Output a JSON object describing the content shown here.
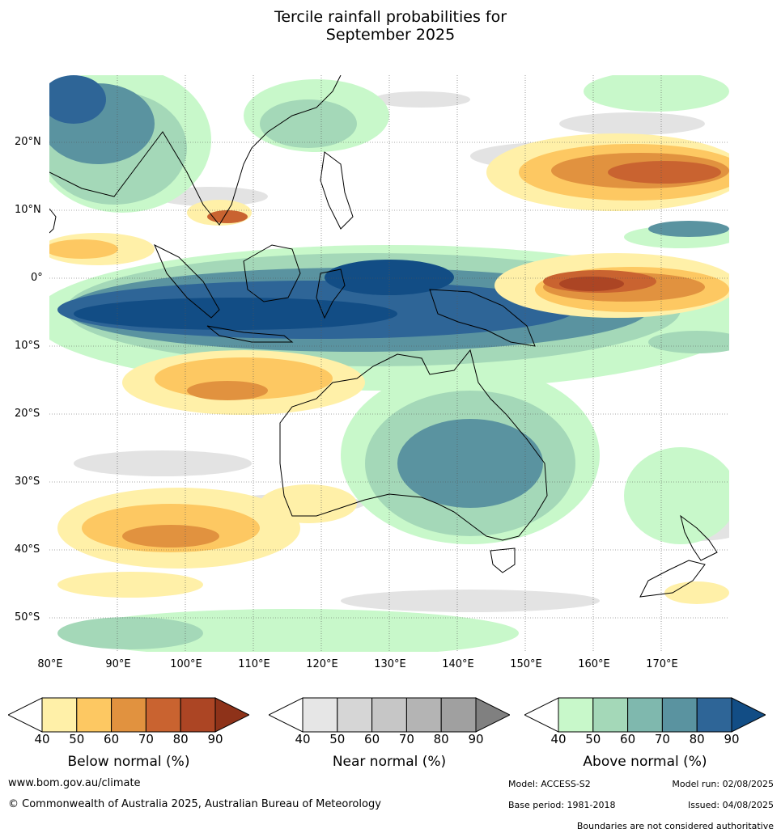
{
  "title_line1": "Tercile rainfall probabilities for",
  "title_line2": "September 2025",
  "lat_labels": [
    "20°N",
    "10°N",
    "0°",
    "10°S",
    "20°S",
    "30°S",
    "40°S",
    "50°S"
  ],
  "lon_labels": [
    "80°E",
    "90°E",
    "100°E",
    "110°E",
    "120°E",
    "130°E",
    "140°E",
    "150°E",
    "160°E",
    "170°E"
  ],
  "colorbars": [
    {
      "label": "Below normal (%)",
      "colors": [
        "#fff0a8",
        "#fdc862",
        "#e1923f",
        "#c96330",
        "#ac4524",
        "#8e3219"
      ],
      "ticks": [
        "40",
        "50",
        "60",
        "70",
        "80",
        "90"
      ]
    },
    {
      "label": "Near normal (%)",
      "colors": [
        "#e6e6e6",
        "#d6d6d6",
        "#c6c6c6",
        "#b4b4b4",
        "#a0a0a0",
        "#808080"
      ],
      "ticks": [
        "40",
        "50",
        "60",
        "70",
        "80",
        "90"
      ]
    },
    {
      "label": "Above normal (%)",
      "colors": [
        "#c8f8ca",
        "#a4d8b8",
        "#7fb8ae",
        "#5a93a0",
        "#2e6597",
        "#124d85"
      ],
      "ticks": [
        "40",
        "50",
        "60",
        "70",
        "80",
        "90"
      ]
    }
  ],
  "footer": {
    "website": "www.bom.gov.au/climate",
    "copyright": "© Commonwealth of Australia 2025, Australian Bureau of Meteorology",
    "model": "Model: ACCESS-S2",
    "model_run": "Model run: 02/08/2025",
    "base_period": "Base period: 1981-2018",
    "issued": "Issued: 04/08/2025",
    "disclaimer": "Boundaries are not considered authoritative"
  },
  "map_colors": {
    "below_normal_low": "#fff0a8",
    "below_normal_mid": "#fdc862",
    "below_normal_high": "#c96330",
    "below_normal_max": "#ac4524",
    "near_normal": "#e3e3e3",
    "above_normal_low": "#c8f8ca",
    "above_normal_mid": "#a4d8b8",
    "above_normal_high": "#5a93a0",
    "above_normal_max": "#124d85"
  }
}
